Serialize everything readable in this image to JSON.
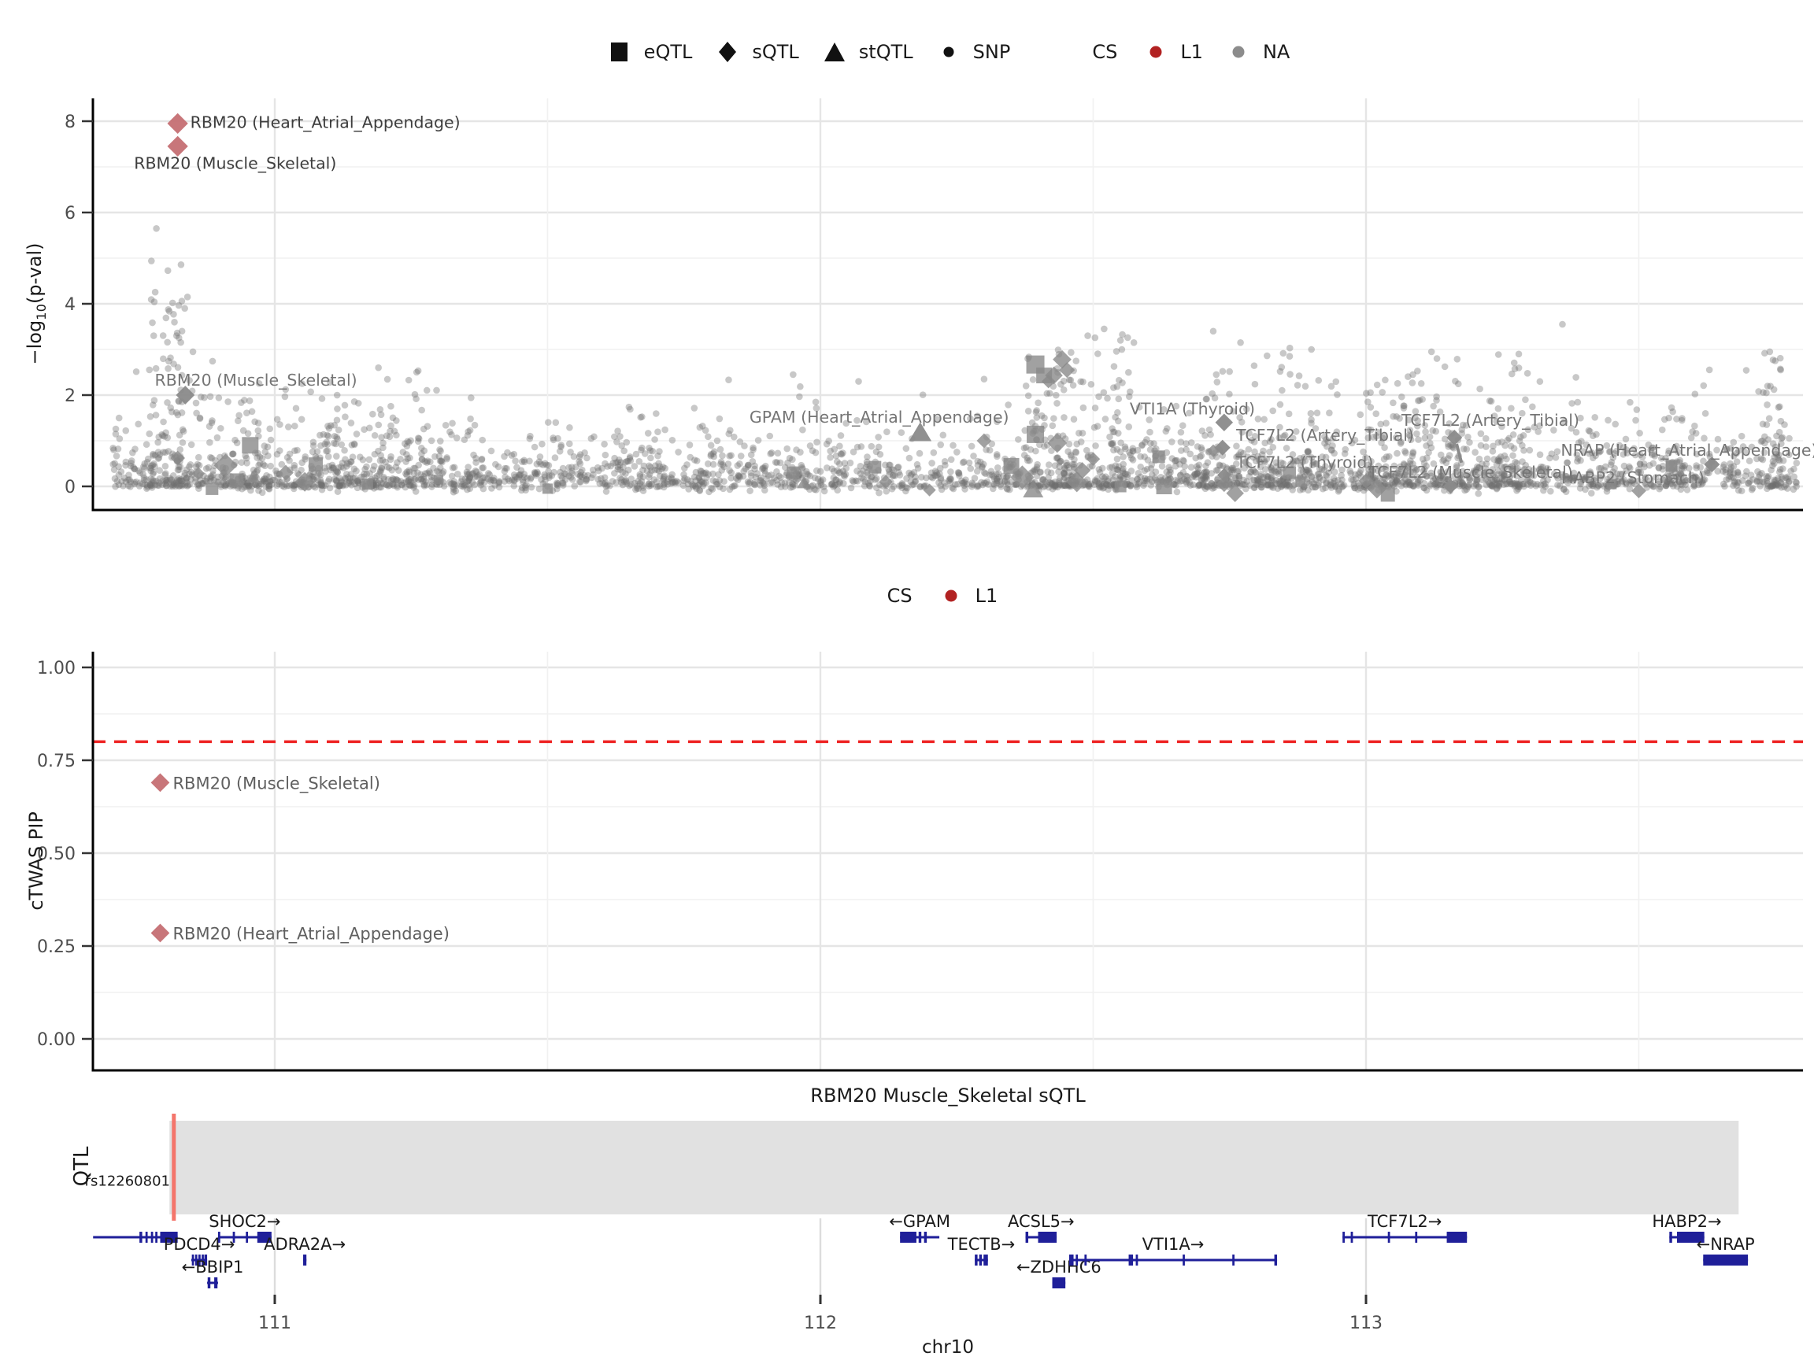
{
  "figure": {
    "track_title": "RBM20 Muscle_Skeletal sQTL",
    "qtl_track_label": "QTL",
    "rs_label": "rs12260801",
    "chr_label": "chr10",
    "pval_ylabel_pre": "−log",
    "pval_ylabel_sub": "10",
    "pval_ylabel_post": "(p-val)",
    "pip_ylabel": "cTWAS PIP"
  },
  "colors": {
    "cs_l1": "#B22222",
    "cs_na": "#8C8C8C",
    "highlight_point": "#C56F73",
    "grey_point": "#8a8a8a",
    "snp_dot": "#6f6f6f",
    "threshold_line": "#EE2222",
    "gene": "#1f1f99",
    "qtl_region": "#E1E1E1",
    "qtl_snp_line": "#F4756B",
    "axis_text": "#4d4d4d",
    "grey_label_text": "#757575",
    "dark_label_text": "#3d3d3d",
    "mid_label_text": "#5f5f5f"
  },
  "legend_top": {
    "shape_items": [
      {
        "label": "eQTL",
        "shape": "square"
      },
      {
        "label": "sQTL",
        "shape": "diamond"
      },
      {
        "label": "stQTL",
        "shape": "triangle"
      },
      {
        "label": "SNP",
        "shape": "circle"
      }
    ],
    "cs_title": "CS",
    "cs_items": [
      {
        "label": "L1",
        "color": "#B22222"
      },
      {
        "label": "NA",
        "color": "#8C8C8C"
      }
    ]
  },
  "legend_mid": {
    "cs_title": "CS",
    "cs_items": [
      {
        "label": "L1",
        "color": "#B22222"
      }
    ]
  },
  "chart_data": [
    {
      "id": "pval_panel",
      "type": "scatter",
      "ylabel": "-log10(p-val)",
      "x_range": [
        110.667,
        113.8
      ],
      "y_range": [
        -0.52,
        8.52
      ],
      "yticks": [
        0,
        2,
        4,
        6,
        8
      ],
      "y_minor": [
        1,
        3,
        5,
        7
      ],
      "xticks_major": [
        111,
        112,
        113
      ],
      "xticks_minor": [
        111.5,
        112.5,
        113.5
      ],
      "labeled_points": [
        {
          "label": "RBM20 (Heart_Atrial_Appendage)",
          "x": 110.822,
          "y": 7.95,
          "shape": "diamond",
          "size": 21,
          "color": "#C56F73",
          "lx": 110.845,
          "ly": 7.97,
          "text": "dark"
        },
        {
          "label": "RBM20 (Muscle_Skeletal)",
          "x": 110.822,
          "y": 7.45,
          "shape": "diamond",
          "size": 21,
          "color": "#C56F73",
          "lx": 110.742,
          "ly": 7.08,
          "text": "dark"
        },
        {
          "label": "RBM20 (Muscle_Skeletal)",
          "x": 110.836,
          "y": 2.0,
          "shape": "diamond",
          "size": 19,
          "color": "#8a8a8a",
          "lx": 110.78,
          "ly": 2.33,
          "text": "grey"
        },
        {
          "label": "GPAM (Heart_Atrial_Appendage)",
          "x": 112.183,
          "y": 1.18,
          "shape": "triangle",
          "size": 22,
          "color": "#8a8a8a",
          "lx": 111.87,
          "ly": 1.52,
          "text": "grey"
        },
        {
          "label": "VTI1A (Thyroid)",
          "x": 112.74,
          "y": 1.4,
          "shape": "diamond",
          "size": 18,
          "color": "#8a8a8a",
          "lx": 112.567,
          "ly": 1.7,
          "text": "grey"
        },
        {
          "label": "TCF7L2 (Artery_Tibial)",
          "x": 112.737,
          "y": 0.85,
          "shape": "diamond",
          "size": 16,
          "color": "#8a8a8a",
          "lx": 112.762,
          "ly": 1.12,
          "text": "grey"
        },
        {
          "label": "TCF7L2 (Artery_Tibial)",
          "x": 113.162,
          "y": 1.07,
          "shape": "diamond",
          "size": 16,
          "color": "#8a8a8a",
          "lx": 113.065,
          "ly": 1.45,
          "text": "grey",
          "leader": [
            113.166,
            0.93,
            113.175,
            0.52
          ]
        },
        {
          "label": "TCF7L2 (Thyroid)",
          "x": 112.74,
          "y": 0.25,
          "shape": "diamond",
          "size": 14,
          "color": "#8a8a8a",
          "lx": 112.762,
          "ly": 0.53,
          "text": "grey"
        },
        {
          "label": "TCF7L2 (Muscle_Skeletal)",
          "x": 113.155,
          "y": 0.0,
          "shape": "diamond",
          "size": 15,
          "color": "#8a8a8a",
          "lx": 113.004,
          "ly": 0.31,
          "text": "grey"
        },
        {
          "label": "NRAP (Heart_Atrial_Appendage)",
          "x": 113.634,
          "y": 0.48,
          "shape": "diamond",
          "size": 16,
          "color": "#8a8a8a",
          "lx": 113.357,
          "ly": 0.79,
          "text": "grey"
        },
        {
          "label": "HABP2 (Stomach)",
          "x": 113.56,
          "y": 0.45,
          "shape": "square",
          "size": 15,
          "color": "#8a8a8a",
          "lx": 113.358,
          "ly": 0.19,
          "text": "grey"
        }
      ],
      "special_points": [
        [
          110.822,
          0.62,
          "d",
          15
        ],
        [
          110.86,
          0.28,
          "d",
          13
        ],
        [
          110.91,
          0.46,
          "d",
          24
        ],
        [
          110.955,
          0.9,
          "s",
          21
        ],
        [
          110.93,
          0.13,
          "s",
          18
        ],
        [
          110.96,
          0.2,
          "t",
          14
        ],
        [
          111.02,
          0.3,
          "d",
          16
        ],
        [
          111.055,
          0.1,
          "d",
          20
        ],
        [
          110.885,
          -0.05,
          "s",
          16
        ],
        [
          111.075,
          0.48,
          "s",
          18
        ],
        [
          111.17,
          0.05,
          "s",
          14
        ],
        [
          111.5,
          -0.05,
          "s",
          13
        ],
        [
          111.95,
          0.3,
          "s",
          16
        ],
        [
          111.97,
          0.08,
          "t",
          14
        ],
        [
          112.1,
          0.42,
          "s",
          16
        ],
        [
          112.12,
          0.1,
          "d",
          14
        ],
        [
          112.3,
          1.0,
          "d",
          15
        ],
        [
          112.394,
          1.14,
          "s",
          22
        ],
        [
          112.35,
          0.45,
          "s",
          20
        ],
        [
          112.37,
          0.2,
          "d",
          24
        ],
        [
          112.434,
          0.95,
          "d",
          20
        ],
        [
          112.394,
          2.67,
          "s",
          23
        ],
        [
          112.41,
          2.43,
          "s",
          20
        ],
        [
          112.443,
          2.78,
          "d",
          19
        ],
        [
          112.428,
          2.43,
          "d",
          18
        ],
        [
          112.452,
          2.55,
          "d",
          16
        ],
        [
          112.418,
          2.3,
          "d",
          14
        ],
        [
          112.39,
          -0.07,
          "t",
          20
        ],
        [
          112.47,
          0.1,
          "d",
          21
        ],
        [
          112.48,
          0.35,
          "d",
          17
        ],
        [
          112.5,
          0.6,
          "d",
          14
        ],
        [
          112.55,
          0.0,
          "s",
          15
        ],
        [
          112.62,
          0.65,
          "s",
          16
        ],
        [
          112.63,
          0.0,
          "s",
          20
        ],
        [
          112.86,
          0.3,
          "s",
          16
        ],
        [
          112.88,
          0.1,
          "s",
          13
        ],
        [
          112.74,
          0.05,
          "d",
          16
        ],
        [
          112.76,
          -0.15,
          "d",
          18
        ],
        [
          113.04,
          -0.18,
          "s",
          18
        ],
        [
          113.02,
          -0.05,
          "d",
          20
        ],
        [
          113.0,
          0.12,
          "d",
          15
        ],
        [
          112.72,
          0.78,
          "d",
          13
        ],
        [
          113.45,
          0.05,
          "s",
          13
        ],
        [
          113.5,
          -0.1,
          "d",
          15
        ],
        [
          112.2,
          -0.08,
          "d",
          13
        ],
        [
          111.3,
          0.15,
          "s",
          12
        ]
      ],
      "extra_snps": [
        [
          110.783,
          5.65
        ],
        [
          110.84,
          4.15
        ],
        [
          110.835,
          3.9
        ],
        [
          110.82,
          3.3
        ],
        [
          110.85,
          2.95
        ],
        [
          111.19,
          2.6
        ],
        [
          111.26,
          2.5
        ],
        [
          111.05,
          2.25
        ],
        [
          111.95,
          2.45
        ],
        [
          112.07,
          2.3
        ],
        [
          112.3,
          2.35
        ],
        [
          112.52,
          3.45
        ],
        [
          112.49,
          3.3
        ],
        [
          112.55,
          3.2
        ],
        [
          112.72,
          3.4
        ],
        [
          112.77,
          3.15
        ],
        [
          112.9,
          3.0
        ],
        [
          112.86,
          2.85
        ],
        [
          113.12,
          2.95
        ],
        [
          113.13,
          2.8
        ],
        [
          113.28,
          2.9
        ],
        [
          113.36,
          3.55
        ],
        [
          113.74,
          2.95
        ],
        [
          113.75,
          2.75
        ],
        [
          113.76,
          2.55
        ]
      ],
      "snp_cloud": {
        "seed": 1337,
        "n_base": 2600,
        "x_min": 110.7,
        "x_max": 113.79,
        "exp_scale": 0.42,
        "jitter_below": 0.2,
        "clip_max": 2.6,
        "hotspots": [
          [
            110.8,
            0.03,
            70,
            5.0
          ],
          [
            110.84,
            0.05,
            50,
            4.0
          ],
          [
            111.02,
            0.1,
            60,
            2.3
          ],
          [
            111.15,
            0.08,
            40,
            2.2
          ],
          [
            111.3,
            0.06,
            30,
            2.4
          ],
          [
            111.22,
            0.06,
            40,
            2.6
          ],
          [
            112.42,
            0.05,
            80,
            3.0
          ],
          [
            112.5,
            0.08,
            90,
            3.4
          ],
          [
            112.62,
            0.1,
            60,
            2.6
          ],
          [
            112.78,
            0.08,
            70,
            2.9
          ],
          [
            112.9,
            0.06,
            50,
            3.0
          ],
          [
            113.05,
            0.05,
            60,
            2.4
          ],
          [
            113.12,
            0.06,
            60,
            2.9
          ],
          [
            113.2,
            0.05,
            40,
            2.2
          ],
          [
            113.28,
            0.04,
            40,
            2.9
          ],
          [
            113.45,
            0.05,
            30,
            1.8
          ],
          [
            113.58,
            0.04,
            40,
            2.2
          ],
          [
            113.745,
            0.02,
            45,
            3.0
          ]
        ]
      }
    },
    {
      "id": "pip_panel",
      "type": "scatter",
      "ylabel": "cTWAS PIP",
      "x_range": [
        110.667,
        113.8
      ],
      "y_range": [
        -0.085,
        1.042
      ],
      "yticks": [
        0.0,
        0.25,
        0.5,
        0.75,
        1.0
      ],
      "ytick_labels": [
        "0.00",
        "0.25",
        "0.50",
        "0.75",
        "1.00"
      ],
      "y_minor": [
        0.125,
        0.375,
        0.625,
        0.875
      ],
      "xticks_major": [
        111,
        112,
        113
      ],
      "xticks_minor": [
        111.5,
        112.5,
        113.5
      ],
      "threshold": 0.8,
      "points": [
        {
          "label": "RBM20 (Muscle_Skeletal)",
          "x": 110.79,
          "y": 0.69,
          "shape": "diamond",
          "size": 19,
          "color": "#C56F73"
        },
        {
          "label": "RBM20 (Heart_Atrial_Appendage)",
          "x": 110.79,
          "y": 0.285,
          "shape": "diamond",
          "size": 19,
          "color": "#C56F73"
        }
      ]
    },
    {
      "id": "genome_track",
      "type": "genome-track",
      "title": "RBM20 Muscle_Skeletal sQTL",
      "track_label": "QTL",
      "xlabel": "chr10",
      "x_range": [
        110.667,
        113.8
      ],
      "xticks": [
        111,
        112,
        113
      ],
      "snp": {
        "id": "rs12260801",
        "x": 110.815
      },
      "region": [
        110.807,
        113.683
      ],
      "genes": [
        {
          "name": "",
          "start": 110.667,
          "end": 110.822,
          "row": 0,
          "exons": [
            [
              110.752,
              110.757
            ],
            [
              110.763,
              110.767
            ],
            [
              110.773,
              110.777
            ],
            [
              110.781,
              110.785
            ],
            [
              110.79,
              110.822
            ]
          ]
        },
        {
          "name": "PDCD4→",
          "start": 110.847,
          "end": 110.876,
          "row": 1,
          "exons": [
            [
              110.848,
              110.852
            ],
            [
              110.854,
              110.858
            ],
            [
              110.86,
              110.864
            ],
            [
              110.866,
              110.87
            ],
            [
              110.871,
              110.876
            ]
          ]
        },
        {
          "name": "←BBIP1",
          "start": 110.876,
          "end": 110.896,
          "row": 2,
          "exons": [
            [
              110.877,
              110.882
            ],
            [
              110.889,
              110.895
            ]
          ]
        },
        {
          "name": "SHOC2→",
          "start": 110.896,
          "end": 110.994,
          "row": 0,
          "exons": [
            [
              110.896,
              110.9
            ],
            [
              110.923,
              110.927
            ],
            [
              110.947,
              110.951
            ],
            [
              110.968,
              110.994
            ]
          ]
        },
        {
          "name": "ADRA2A→",
          "start": 111.052,
          "end": 111.058,
          "row": 1,
          "exons": [
            [
              111.052,
              111.058
            ]
          ]
        },
        {
          "name": "←GPAM",
          "start": 112.146,
          "end": 112.218,
          "row": 0,
          "exons": [
            [
              112.146,
              112.176
            ],
            [
              112.18,
              112.185
            ],
            [
              112.19,
              112.195
            ]
          ]
        },
        {
          "name": "TECTB→",
          "start": 112.283,
          "end": 112.307,
          "row": 1,
          "exons": [
            [
              112.283,
              112.288
            ],
            [
              112.291,
              112.296
            ],
            [
              112.299,
              112.307
            ]
          ]
        },
        {
          "name": "ACSL5→",
          "start": 112.376,
          "end": 112.433,
          "row": 0,
          "exons": [
            [
              112.376,
              112.381
            ],
            [
              112.399,
              112.433
            ]
          ]
        },
        {
          "name": "←ZDHHC6",
          "start": 112.425,
          "end": 112.449,
          "row": 2,
          "exons": [
            [
              112.425,
              112.449
            ]
          ]
        },
        {
          "name": "VTI1A→",
          "start": 112.456,
          "end": 112.837,
          "row": 1,
          "exons": [
            [
              112.456,
              112.464
            ],
            [
              112.468,
              112.472
            ],
            [
              112.484,
              112.488
            ],
            [
              112.565,
              112.573
            ],
            [
              112.578,
              112.582
            ],
            [
              112.664,
              112.668
            ],
            [
              112.755,
              112.759
            ],
            [
              112.832,
              112.837
            ]
          ]
        },
        {
          "name": "TCF7L2→",
          "start": 112.957,
          "end": 113.185,
          "row": 0,
          "exons": [
            [
              112.957,
              112.961
            ],
            [
              112.972,
              112.976
            ],
            [
              113.04,
              113.044
            ],
            [
              113.09,
              113.094
            ],
            [
              113.148,
              113.185
            ]
          ]
        },
        {
          "name": "HABP2→",
          "start": 113.556,
          "end": 113.62,
          "row": 0,
          "exons": [
            [
              113.556,
              113.561
            ],
            [
              113.57,
              113.62
            ]
          ]
        },
        {
          "name": "←NRAP",
          "start": 113.618,
          "end": 113.7,
          "row": 1,
          "exons": [
            [
              113.618,
              113.7
            ]
          ]
        }
      ]
    }
  ]
}
